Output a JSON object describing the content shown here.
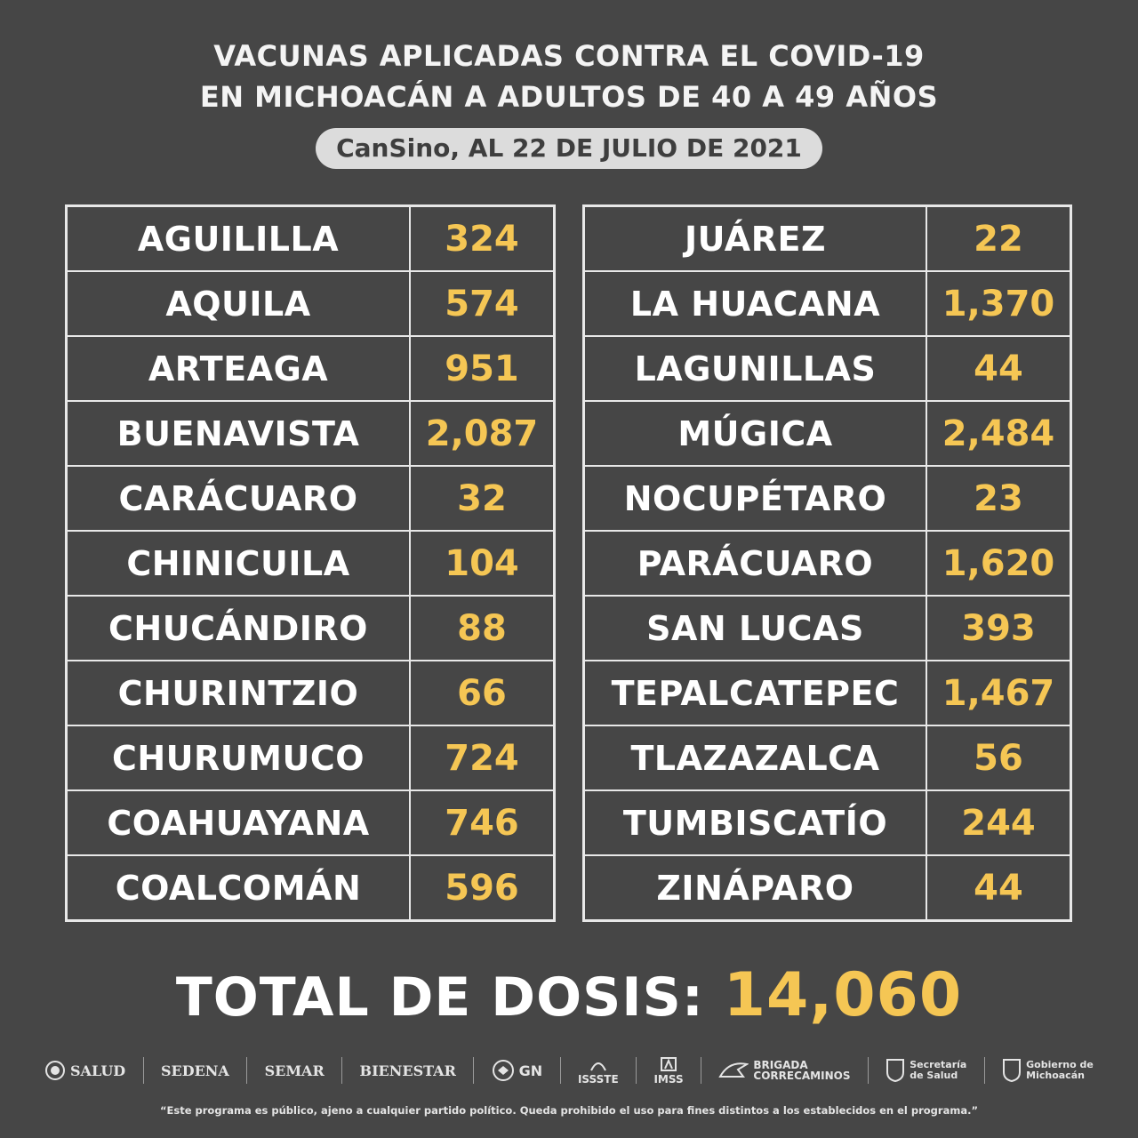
{
  "header": {
    "title_line1": "VACUNAS APLICADAS CONTRA EL COVID-19",
    "title_line2": "EN MICHOACÁN A ADULTOS DE 40 A 49 AÑOS",
    "subtitle": "CanSino, AL 22 DE JULIO DE 2021"
  },
  "left_table": [
    {
      "name": "AGUILILLA",
      "value": "324"
    },
    {
      "name": "AQUILA",
      "value": "574"
    },
    {
      "name": "ARTEAGA",
      "value": "951"
    },
    {
      "name": "BUENAVISTA",
      "value": "2,087"
    },
    {
      "name": "CARÁCUARO",
      "value": "32"
    },
    {
      "name": "CHINICUILA",
      "value": "104"
    },
    {
      "name": "CHUCÁNDIRO",
      "value": "88"
    },
    {
      "name": "CHURINTZIO",
      "value": "66"
    },
    {
      "name": "CHURUMUCO",
      "value": "724"
    },
    {
      "name": "COAHUAYANA",
      "value": "746"
    },
    {
      "name": "COALCOMÁN",
      "value": "596"
    }
  ],
  "right_table": [
    {
      "name": "JUÁREZ",
      "value": "22"
    },
    {
      "name": "LA HUACANA",
      "value": "1,370"
    },
    {
      "name": "LAGUNILLAS",
      "value": "44"
    },
    {
      "name": "MÚGICA",
      "value": "2,484"
    },
    {
      "name": "NOCUPÉTARO",
      "value": "23"
    },
    {
      "name": "PARÁCUARO",
      "value": "1,620"
    },
    {
      "name": "SAN LUCAS",
      "value": "393"
    },
    {
      "name": "TEPALCATEPEC",
      "value": "1,467"
    },
    {
      "name": "TLAZAZALCA",
      "value": "56"
    },
    {
      "name": "TUMBISCATÍO",
      "value": "244"
    },
    {
      "name": "ZINÁPARO",
      "value": "44"
    }
  ],
  "total": {
    "label": "TOTAL DE DOSIS:",
    "value": "14,060"
  },
  "logos": {
    "salud": "SALUD",
    "sedena": "SEDENA",
    "semar": "SEMAR",
    "bienestar": "BIENESTAR",
    "gn": "GN",
    "issste": "ISSSTE",
    "imss": "IMSS",
    "brigada_line1": "BRIGADA",
    "brigada_line2": "CORRECAMINOS",
    "secretaria_line1": "Secretaría",
    "secretaria_line2": "de Salud",
    "gobierno_line1": "Gobierno de",
    "gobierno_line2": "Michoacán"
  },
  "footer": {
    "disclaimer": "“Este programa es público, ajeno a cualquier partido político. Queda prohibido el uso para fines distintos a los establecidos en el programa.”"
  }
}
